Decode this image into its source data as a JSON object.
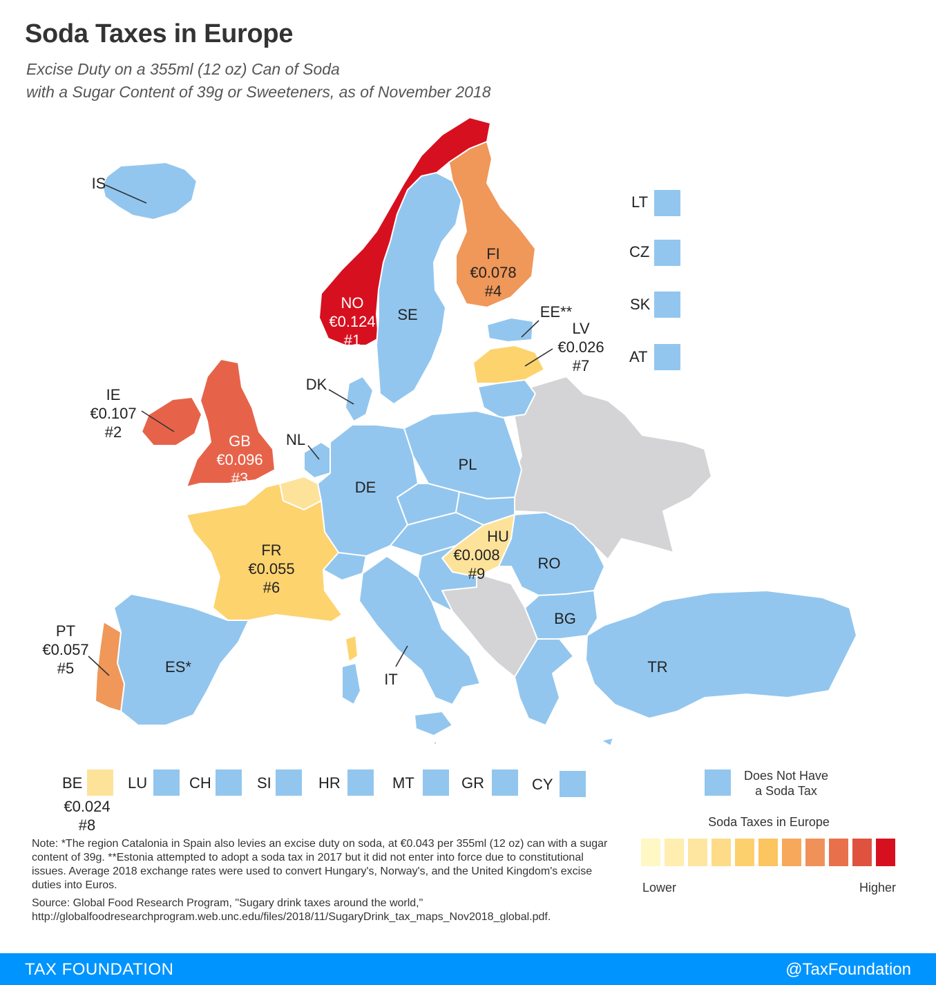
{
  "header": {
    "title": "Soda Taxes in Europe",
    "subtitle_line1": "Excise Duty on a 355ml (12 oz) Can of Soda",
    "subtitle_line2": "with a Sugar Content of 39g or Sweeteners, as of November 2018"
  },
  "colors": {
    "no_tax": "#92c6ee",
    "no_data": "#d4d4d6",
    "rank1": "#d7101f",
    "rank2_3": "#e6634a",
    "rank4_5": "#f0975a",
    "rank6_7": "#fdd36e",
    "rank8_9": "#fde29a",
    "brand": "#0094ff"
  },
  "map_labels": {
    "NO": {
      "code": "NO",
      "rate": "€0.124",
      "rank": "#1"
    },
    "IE": {
      "code": "IE",
      "rate": "€0.107",
      "rank": "#2"
    },
    "GB": {
      "code": "GB",
      "rate": "€0.096",
      "rank": "#3"
    },
    "FI": {
      "code": "FI",
      "rate": "€0.078",
      "rank": "#4"
    },
    "PT": {
      "code": "PT",
      "rate": "€0.057",
      "rank": "#5"
    },
    "FR": {
      "code": "FR",
      "rate": "€0.055",
      "rank": "#6"
    },
    "LV": {
      "code": "LV",
      "rate": "€0.026",
      "rank": "#7"
    },
    "HU": {
      "code": "HU",
      "rate": "€0.008",
      "rank": "#9"
    },
    "IS": "IS",
    "SE": "SE",
    "DK": "DK",
    "NL": "NL",
    "DE": "DE",
    "PL": "PL",
    "EE": "EE**",
    "RO": "RO",
    "BG": "BG",
    "TR": "TR",
    "ES": "ES*",
    "IT": "IT"
  },
  "side_legend": [
    "LT",
    "CZ",
    "SK",
    "AT"
  ],
  "bottom_legend": {
    "BE": {
      "code": "BE",
      "rate": "€0.024",
      "rank": "#8"
    },
    "others": [
      "LU",
      "CH",
      "SI",
      "HR",
      "MT",
      "GR",
      "CY"
    ]
  },
  "legend": {
    "no_tax_line1": "Does Not Have",
    "no_tax_line2": "a Soda Tax",
    "scale_title": "Soda Taxes in Europe",
    "low": "Lower",
    "high": "Higher",
    "scale_colors": [
      "#fff7c4",
      "#ffeeb0",
      "#fee6a0",
      "#fedb88",
      "#fdd06e",
      "#fcc55f",
      "#f7a85a",
      "#f0915a",
      "#e8714c",
      "#e05240",
      "#d7101f"
    ]
  },
  "notes": {
    "note": "Note: *The region Catalonia in Spain also levies an excise duty on soda, at €0.043 per 355ml (12 oz) can with a sugar content of 39g. **Estonia attempted to adopt a soda tax in 2017 but it did not enter into force due to constitutional issues. Average 2018 exchange rates were used to convert Hungary's, Norway's, and the United Kingdom's excise duties into Euros.",
    "source": "Source: Global Food Research Program, \"Sugary drink taxes around the world,\" http://globalfoodresearchprogram.web.unc.edu/files/2018/11/SugaryDrink_tax_maps_Nov2018_global.pdf."
  },
  "footer": {
    "brand": "TAX FOUNDATION",
    "handle": "@TaxFoundation"
  }
}
